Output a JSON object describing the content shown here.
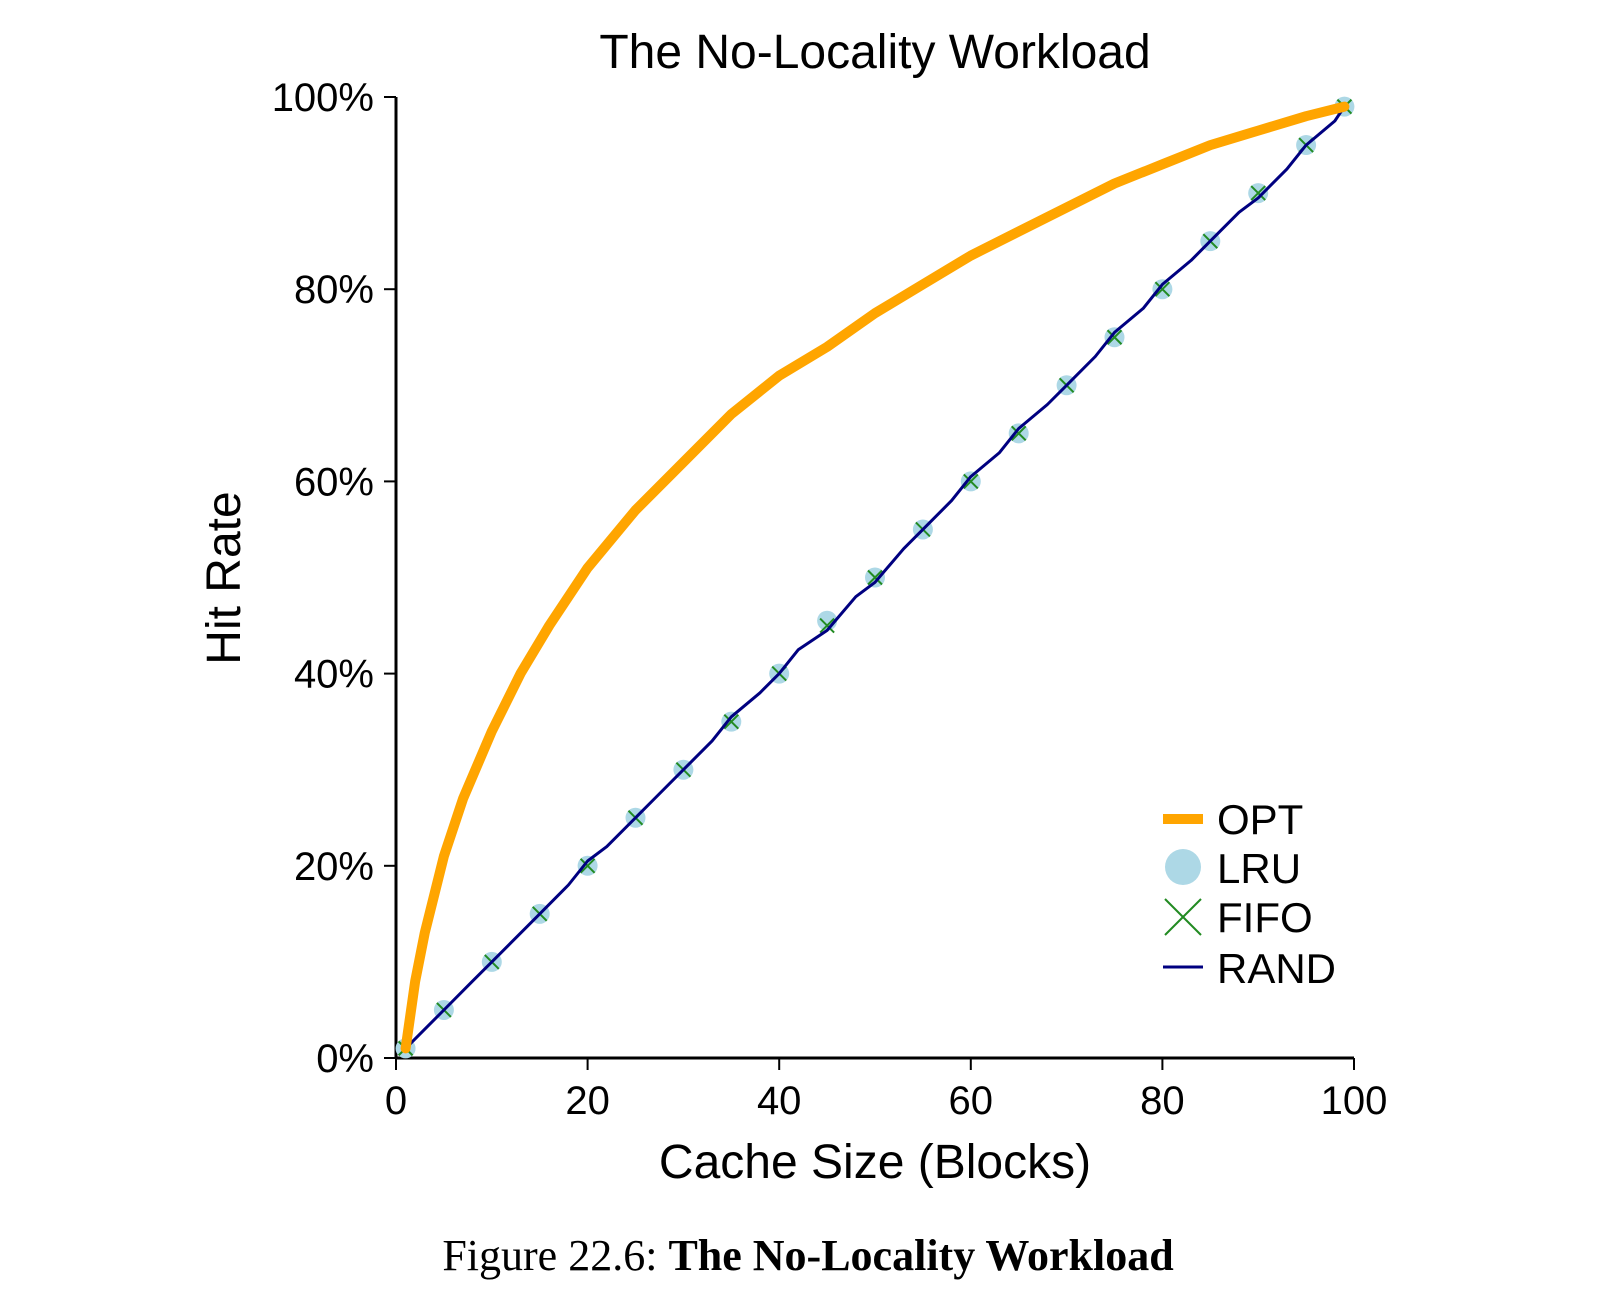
{
  "chart_data": {
    "type": "line",
    "title": "The No-Locality Workload",
    "xlabel": "Cache Size (Blocks)",
    "ylabel": "Hit Rate",
    "xlim": [
      0,
      100
    ],
    "ylim": [
      0,
      100
    ],
    "xticks": [
      0,
      20,
      40,
      60,
      80,
      100
    ],
    "xtick_labels": [
      "0",
      "20",
      "40",
      "60",
      "80",
      "100"
    ],
    "yticks": [
      0,
      20,
      40,
      60,
      80,
      100
    ],
    "ytick_labels": [
      "0%",
      "20%",
      "40%",
      "60%",
      "80%",
      "100%"
    ],
    "grid": false,
    "legend_position": "bottom-right",
    "series": [
      {
        "name": "OPT",
        "color": "#ffa500",
        "style": "thick-line",
        "x": [
          1,
          2,
          3,
          5,
          7,
          10,
          13,
          16,
          20,
          25,
          30,
          35,
          40,
          45,
          50,
          55,
          60,
          65,
          70,
          75,
          80,
          85,
          90,
          95,
          99
        ],
        "y": [
          1,
          8,
          13,
          21,
          27,
          34,
          40,
          45,
          51,
          57,
          62,
          67,
          71,
          74,
          77.5,
          80.5,
          83.5,
          86,
          88.5,
          91,
          93,
          95,
          96.5,
          98,
          99
        ]
      },
      {
        "name": "LRU",
        "color": "#add8e6",
        "style": "circle-markers",
        "x": [
          1,
          5,
          10,
          15,
          20,
          25,
          30,
          35,
          40,
          45,
          50,
          55,
          60,
          65,
          70,
          75,
          80,
          85,
          90,
          95,
          99
        ],
        "y": [
          1,
          5,
          10,
          15,
          20,
          25,
          30,
          35,
          40,
          45.5,
          50,
          55,
          60,
          65,
          70,
          75,
          80,
          85,
          90,
          95,
          99
        ]
      },
      {
        "name": "FIFO",
        "color": "#228b22",
        "style": "x-markers",
        "x": [
          1,
          5,
          10,
          15,
          20,
          25,
          30,
          35,
          40,
          45,
          50,
          55,
          60,
          65,
          70,
          75,
          80,
          85,
          90,
          95,
          99
        ],
        "y": [
          1,
          5,
          10,
          15,
          20,
          25,
          30,
          35,
          40,
          45,
          50,
          55,
          60,
          65,
          70,
          75,
          80,
          85,
          90,
          95,
          99
        ]
      },
      {
        "name": "RAND",
        "color": "#000080",
        "style": "thin-line",
        "x": [
          1,
          5,
          8,
          10,
          12,
          15,
          18,
          20,
          22,
          25,
          27,
          30,
          33,
          35,
          38,
          40,
          42,
          45,
          48,
          50,
          53,
          55,
          58,
          60,
          63,
          65,
          68,
          70,
          73,
          75,
          78,
          80,
          83,
          85,
          88,
          90,
          93,
          95,
          98,
          99
        ],
        "y": [
          1,
          5,
          8,
          10,
          12,
          15,
          18,
          20.5,
          22,
          25,
          27,
          30,
          33,
          35.5,
          38,
          40,
          42.5,
          44.5,
          48,
          49.5,
          53,
          55,
          58,
          60.5,
          63,
          65.5,
          68,
          70,
          73,
          75.5,
          78,
          80.5,
          83,
          85,
          88,
          89.5,
          92.5,
          95,
          97.5,
          99
        ]
      }
    ]
  },
  "caption": {
    "prefix": "Figure 22.6: ",
    "title": "The No-Locality Workload"
  }
}
